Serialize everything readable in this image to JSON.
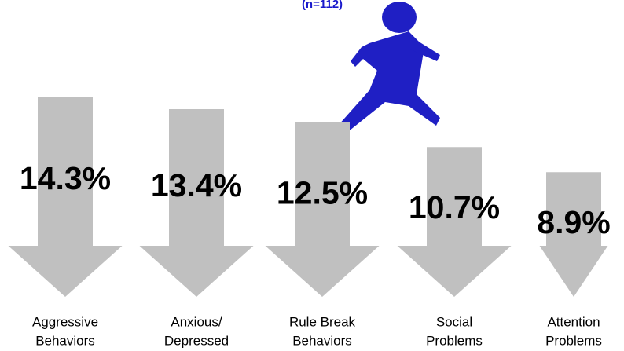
{
  "chart_data": {
    "type": "arrow-bar",
    "title": "(n=112)",
    "categories": [
      [
        "Aggressive",
        "Behaviors"
      ],
      [
        "Anxious/",
        "Depressed"
      ],
      [
        "Rule Break",
        "Behaviors"
      ],
      [
        "Social",
        "Problems"
      ],
      [
        "Attention",
        "Problems"
      ]
    ],
    "values": [
      14.3,
      13.4,
      12.5,
      10.7,
      8.9
    ],
    "value_labels": [
      "14.3%",
      "13.4%",
      "12.5%",
      "10.7%",
      "8.9%"
    ],
    "color": "#c0c0c0"
  }
}
